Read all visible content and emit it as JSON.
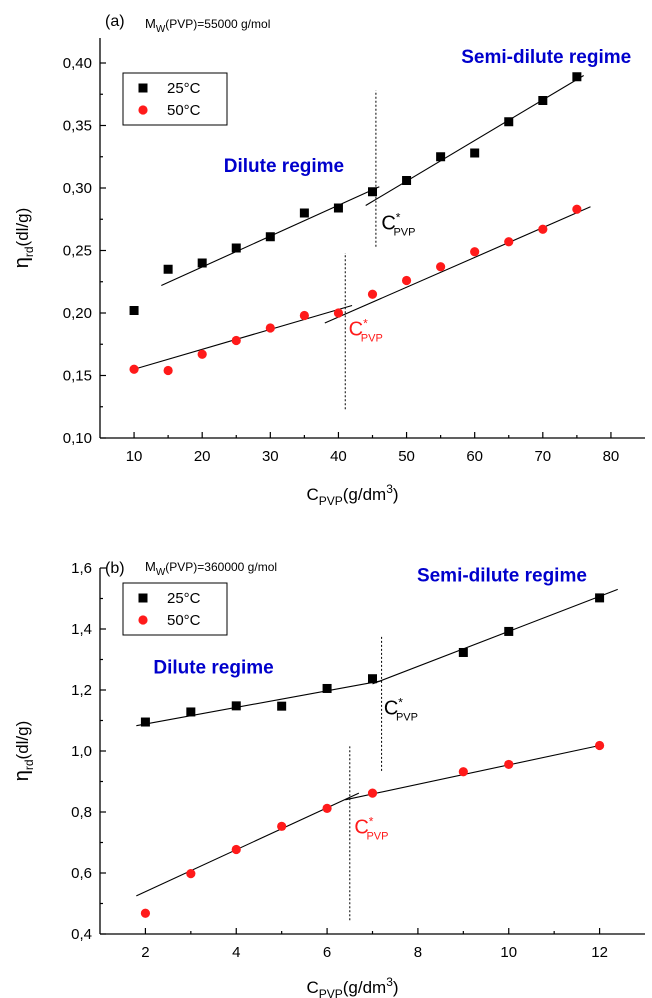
{
  "chart_data": [
    {
      "type": "scatter",
      "panel_label": "(a)",
      "note": "M_W(PVP)=55000 g/mol",
      "note_main": "M",
      "note_sub": "W",
      "note_rest": "(PVP)=55000 g/mol",
      "xlabel_main": "C",
      "xlabel_sub": "PVP",
      "xlabel_rest": "(g/dm",
      "xlabel_sup": "3",
      "xlabel_end": ")",
      "ylabel_main": "η",
      "ylabel_sub": "rd",
      "ylabel_rest": "(dl/g)",
      "xlim": [
        5,
        85
      ],
      "ylim": [
        0.1,
        0.42
      ],
      "x_ticks": [
        10,
        20,
        30,
        40,
        50,
        60,
        70,
        80
      ],
      "x_tick_labels": [
        "10",
        "20",
        "30",
        "40",
        "50",
        "60",
        "70",
        "80"
      ],
      "y_ticks": [
        0.1,
        0.15,
        0.2,
        0.25,
        0.3,
        0.35,
        0.4
      ],
      "y_tick_labels": [
        "0,10",
        "0,15",
        "0,20",
        "0,25",
        "0,30",
        "0,35",
        "0,40"
      ],
      "grid": false,
      "legend_position": "top-left",
      "series": [
        {
          "name": "25°C",
          "color": "#000000",
          "marker": "square",
          "x": [
            10,
            15,
            20,
            25,
            30,
            35,
            40,
            45,
            50,
            55,
            60,
            65,
            70,
            75
          ],
          "y": [
            0.202,
            0.235,
            0.24,
            0.252,
            0.261,
            0.28,
            0.284,
            0.297,
            0.306,
            0.325,
            0.328,
            0.353,
            0.37,
            0.389
          ]
        },
        {
          "name": "50°C",
          "color": "#ff1a1a",
          "marker": "circle",
          "x": [
            10,
            15,
            20,
            25,
            30,
            35,
            40,
            45,
            50,
            55,
            60,
            65,
            70,
            75
          ],
          "y": [
            0.155,
            0.154,
            0.167,
            0.178,
            0.188,
            0.198,
            0.2,
            0.215,
            0.226,
            0.237,
            0.249,
            0.257,
            0.267,
            0.283
          ]
        }
      ],
      "fit_lines": [
        {
          "x": [
            14,
            46
          ],
          "y": [
            0.222,
            0.301
          ]
        },
        {
          "x": [
            44,
            76
          ],
          "y": [
            0.286,
            0.39
          ]
        },
        {
          "x": [
            10,
            42
          ],
          "y": [
            0.155,
            0.206
          ]
        },
        {
          "x": [
            38,
            77
          ],
          "y": [
            0.192,
            0.285
          ]
        }
      ],
      "transitions": [
        {
          "x": 45.5,
          "y_from": 0.253,
          "y_to": 0.378
        },
        {
          "x": 41,
          "y_from": 0.123,
          "y_to": 0.248
        }
      ],
      "annotations": [
        {
          "text": "Dilute regime",
          "x": 32,
          "y": 0.313,
          "color": "#0000cc",
          "kind": "regime"
        },
        {
          "text": "Semi-dilute regime",
          "x": 70.5,
          "y": 0.4,
          "color": "#0000cc",
          "kind": "regime"
        },
        {
          "main": "C",
          "sup": "*",
          "sub": "PVP",
          "x": 46.3,
          "y": 0.267,
          "color": "#000000",
          "kind": "cstar"
        },
        {
          "main": "C",
          "sup": "*",
          "sub": "PVP",
          "x": 41.5,
          "y": 0.182,
          "color": "#ff1a1a",
          "kind": "cstar"
        }
      ]
    },
    {
      "type": "scatter",
      "panel_label": "(b)",
      "note": "M_W(PVP)=360000 g/mol",
      "note_main": "M",
      "note_sub": "W",
      "note_rest": "(PVP)=360000 g/mol",
      "xlabel_main": "C",
      "xlabel_sub": "PVP",
      "xlabel_rest": "(g/dm",
      "xlabel_sup": "3",
      "xlabel_end": ")",
      "ylabel_main": "η",
      "ylabel_sub": "rd",
      "ylabel_rest": "(dl/g)",
      "xlim": [
        1,
        13
      ],
      "ylim": [
        0.4,
        1.6
      ],
      "x_ticks": [
        2,
        4,
        6,
        8,
        10,
        12
      ],
      "x_tick_labels": [
        "2",
        "4",
        "6",
        "8",
        "10",
        "12"
      ],
      "y_ticks": [
        0.4,
        0.6,
        0.8,
        1.0,
        1.2,
        1.4,
        1.6
      ],
      "y_tick_labels": [
        "0,4",
        "0,6",
        "0,8",
        "1,0",
        "1,2",
        "1,4",
        "1,6"
      ],
      "grid": false,
      "legend_position": "top-left",
      "series": [
        {
          "name": "25°C",
          "color": "#000000",
          "marker": "square",
          "x": [
            2,
            3,
            4,
            5,
            6,
            7,
            9,
            10,
            12
          ],
          "y": [
            1.095,
            1.128,
            1.148,
            1.147,
            1.205,
            1.237,
            1.323,
            1.392,
            1.502
          ]
        },
        {
          "name": "50°C",
          "color": "#ff1a1a",
          "marker": "circle",
          "x": [
            2,
            3,
            4,
            5,
            6,
            7,
            9,
            10,
            12
          ],
          "y": [
            0.468,
            0.598,
            0.677,
            0.753,
            0.812,
            0.862,
            0.932,
            0.956,
            1.018
          ]
        }
      ],
      "fit_lines": [
        {
          "x": [
            1.8,
            7.2
          ],
          "y": [
            1.083,
            1.23
          ]
        },
        {
          "x": [
            7.0,
            12.4
          ],
          "y": [
            1.22,
            1.53
          ]
        },
        {
          "x": [
            1.8,
            6.7
          ],
          "y": [
            0.525,
            0.862
          ]
        },
        {
          "x": [
            6.4,
            12.0
          ],
          "y": [
            0.84,
            1.018
          ]
        }
      ],
      "transitions": [
        {
          "x": 7.2,
          "y_from": 0.935,
          "y_to": 1.38
        },
        {
          "x": 6.5,
          "y_from": 0.445,
          "y_to": 1.015
        }
      ],
      "annotations": [
        {
          "text": "Dilute regime",
          "x": 3.5,
          "y": 1.254,
          "color": "#0000cc",
          "kind": "regime"
        },
        {
          "text": "Semi-dilute regime",
          "x": 9.85,
          "y": 1.555,
          "color": "#0000cc",
          "kind": "regime"
        },
        {
          "main": "C",
          "sup": "*",
          "sub": "PVP",
          "x": 7.25,
          "y": 1.12,
          "color": "#000000",
          "kind": "cstar"
        },
        {
          "main": "C",
          "sup": "*",
          "sub": "PVP",
          "x": 6.6,
          "y": 0.73,
          "color": "#ff1a1a",
          "kind": "cstar"
        }
      ]
    }
  ]
}
